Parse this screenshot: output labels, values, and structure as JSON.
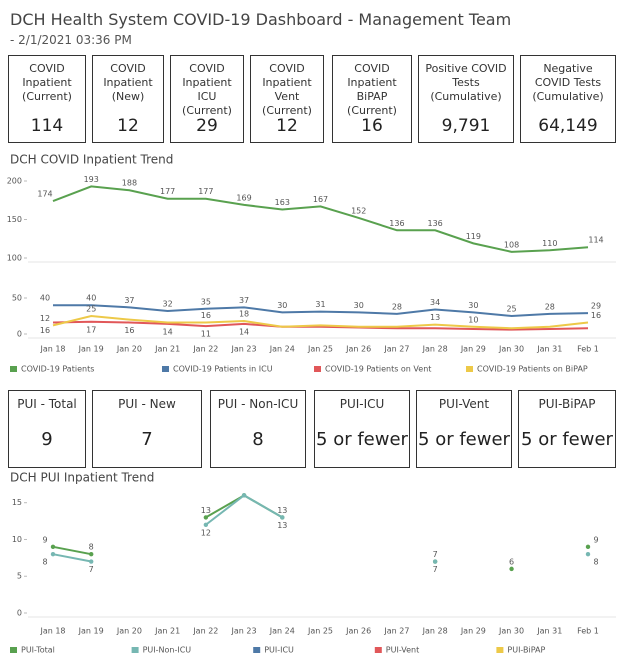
{
  "header": {
    "title": "DCH Health System COVID-19 Dashboard - Management Team",
    "subtitle": " - 2/1/2021 03:36 PM"
  },
  "kpis": [
    {
      "title": "COVID Inpatient (Current)",
      "value": 114
    },
    {
      "title": "COVID Inpatient (New)",
      "value": 12
    },
    {
      "title": "COVID Inpatient ICU (Current)",
      "value": 29
    },
    {
      "title": "COVID Inpatient Vent (Current)",
      "value": 12
    },
    {
      "title": "COVID Inpatient BiPAP (Current)",
      "value": 16
    },
    {
      "title": "Positive COVID Tests (Cumulative)",
      "value": "9,791"
    },
    {
      "title": "Negative COVID Tests (Cumulative)",
      "value": "64,149"
    }
  ],
  "pui_kpis": [
    {
      "title": "PUI - Total",
      "value": 9
    },
    {
      "title": "PUI - New",
      "value": 7
    },
    {
      "title": "PUI - Non-ICU",
      "value": 8
    },
    {
      "title": "PUI-ICU",
      "value": "5 or fewer"
    },
    {
      "title": "PUI-Vent",
      "value": "5 or fewer"
    },
    {
      "title": "PUI-BiPAP",
      "value": "5 or fewer"
    }
  ],
  "chart_data": [
    {
      "type": "line",
      "title": "DCH COVID Inpatient Trend",
      "markers": false,
      "categories": [
        "Jan 18",
        "Jan 19",
        "Jan 20",
        "Jan 21",
        "Jan 22",
        "Jan 23",
        "Jan 24",
        "Jan 25",
        "Jan 26",
        "Jan 27",
        "Jan 28",
        "Jan 29",
        "Jan 30",
        "Jan 31",
        "Feb 1"
      ],
      "panes": [
        {
          "ylim": [
            100,
            200
          ],
          "yticks": [
            100,
            150,
            200
          ],
          "series": [
            {
              "name": "COVID-19 Patients",
              "color": "#59a14f",
              "label_position": "above",
              "values": [
                174,
                193,
                188,
                177,
                177,
                169,
                163,
                167,
                152,
                136,
                136,
                119,
                108,
                110,
                114
              ],
              "value_labels": [
                "174",
                "193",
                "188",
                "177",
                "177",
                "169",
                "163",
                "167",
                "152",
                "136",
                "136",
                "119",
                "108",
                "110",
                "114"
              ]
            }
          ]
        },
        {
          "ylim": [
            0,
            50
          ],
          "yticks": [
            0,
            50
          ],
          "series": [
            {
              "name": "COVID-19 Patients in ICU",
              "color": "#4e79a7",
              "label_position": "above",
              "values": [
                40,
                40,
                37,
                32,
                35,
                37,
                30,
                31,
                30,
                28,
                34,
                30,
                25,
                28,
                29
              ],
              "value_labels": [
                "40",
                "40",
                "37",
                "32",
                "35",
                "37",
                "30",
                "31",
                "30",
                "28",
                "34",
                "30",
                "25",
                "28",
                "29"
              ]
            },
            {
              "name": "COVID-19 Patients on Vent",
              "color": "#e15759",
              "label_position": "below",
              "values": [
                16,
                17,
                16,
                14,
                11,
                14,
                10,
                10,
                9,
                8,
                8,
                7,
                6,
                7,
                8
              ],
              "value_labels": [
                "16",
                "17",
                "16",
                "14",
                "11",
                "14",
                null,
                null,
                null,
                null,
                null,
                null,
                null,
                null,
                null
              ]
            },
            {
              "name": "COVID-19 Patients on BiPAP",
              "color": "#edc948",
              "label_position": "above",
              "values": [
                12,
                25,
                20,
                16,
                16,
                18,
                10,
                12,
                10,
                10,
                13,
                10,
                8,
                10,
                16
              ],
              "value_labels": [
                "12",
                "25",
                null,
                null,
                "16",
                "18",
                null,
                null,
                null,
                null,
                "13",
                "10",
                null,
                null,
                "16"
              ]
            }
          ]
        }
      ]
    },
    {
      "type": "line",
      "title": "DCH PUI Inpatient Trend",
      "markers": true,
      "categories": [
        "Jan 18",
        "Jan 19",
        "Jan 20",
        "Jan 21",
        "Jan 22",
        "Jan 23",
        "Jan 24",
        "Jan 25",
        "Jan 26",
        "Jan 27",
        "Jan 28",
        "Jan 29",
        "Jan 30",
        "Jan 31",
        "Feb 1"
      ],
      "panes": [
        {
          "ylim": [
            0,
            17
          ],
          "yticks": [
            0,
            5,
            10,
            15
          ],
          "series": [
            {
              "name": "PUI-Total",
              "color": "#59a14f",
              "label_position": "above",
              "values": [
                9,
                8,
                null,
                null,
                13,
                16,
                13,
                null,
                null,
                null,
                7,
                null,
                6,
                null,
                9
              ],
              "value_labels": [
                "9",
                "8",
                null,
                null,
                "13",
                null,
                "13",
                null,
                null,
                null,
                "7",
                null,
                "6",
                null,
                "9"
              ]
            },
            {
              "name": "PUI-Non-ICU",
              "color": "#76b7b2",
              "label_position": "below",
              "values": [
                8,
                7,
                null,
                null,
                12,
                16,
                13,
                null,
                null,
                null,
                7,
                null,
                null,
                null,
                8
              ],
              "value_labels": [
                "8",
                "7",
                null,
                null,
                "12",
                null,
                "13",
                null,
                null,
                null,
                "7",
                null,
                null,
                null,
                "8"
              ]
            },
            {
              "name": "PUI-ICU",
              "color": "#4e79a7",
              "label_position": "above",
              "values": [
                null,
                null,
                null,
                null,
                null,
                null,
                null,
                null,
                null,
                null,
                null,
                null,
                null,
                null,
                null
              ]
            },
            {
              "name": "PUI-Vent",
              "color": "#e15759",
              "label_position": "above",
              "values": [
                null,
                null,
                null,
                null,
                null,
                null,
                null,
                null,
                null,
                null,
                null,
                null,
                null,
                null,
                null
              ]
            },
            {
              "name": "PUI-BiPAP",
              "color": "#edc948",
              "label_position": "above",
              "values": [
                null,
                null,
                null,
                null,
                null,
                null,
                null,
                null,
                null,
                null,
                null,
                null,
                null,
                null,
                null
              ]
            }
          ]
        }
      ]
    }
  ]
}
